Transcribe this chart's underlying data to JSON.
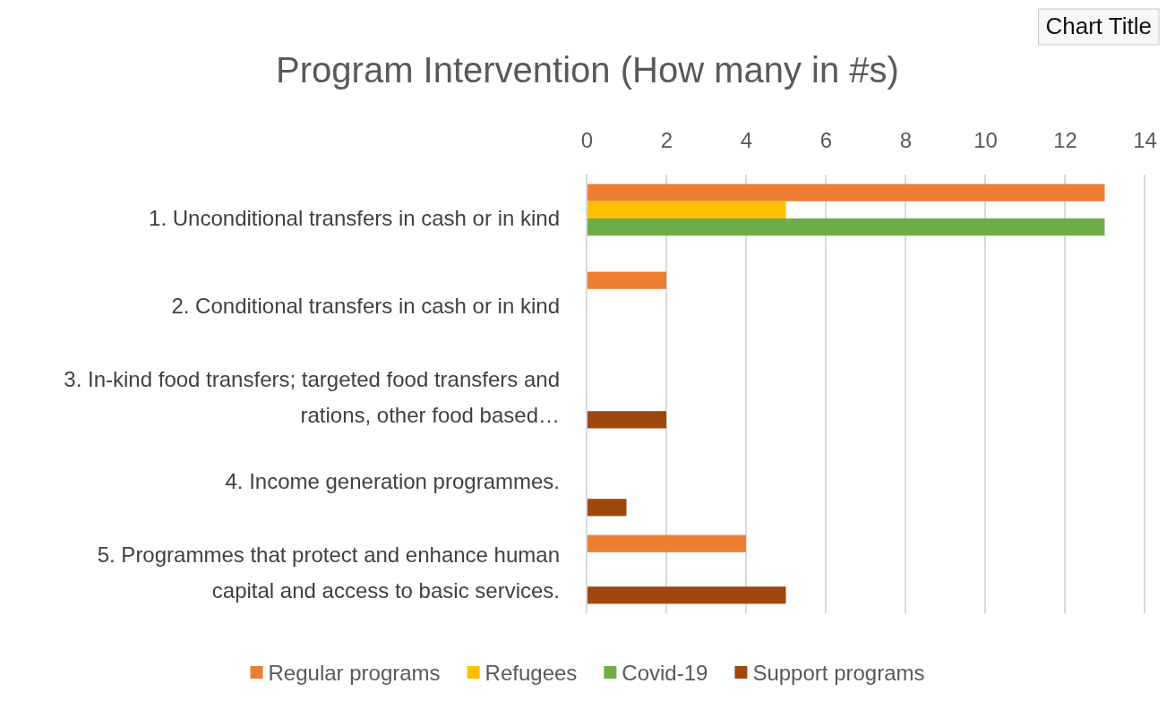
{
  "chart_data": {
    "type": "bar",
    "title": "Program Intervention (How many in #s)",
    "orientation": "horizontal",
    "categories": [
      "1. Unconditional transfers in cash or in kind",
      "2. Conditional transfers in cash or in kind",
      "3. In-kind food transfers; targeted food transfers and rations, other food based…",
      "4. Income generation programmes.",
      "5. Programmes that protect and enhance human capital and access to basic services."
    ],
    "series": [
      {
        "name": "Regular programs",
        "color": "#ed7d31",
        "values": [
          13,
          2,
          null,
          null,
          4
        ]
      },
      {
        "name": "Refugees",
        "color": "#ffc000",
        "values": [
          5,
          null,
          null,
          null,
          null
        ]
      },
      {
        "name": "Covid-19",
        "color": "#70ad47",
        "values": [
          13,
          null,
          null,
          null,
          null
        ]
      },
      {
        "name": "Support programs",
        "color": "#9e480e",
        "values": [
          null,
          null,
          2,
          1,
          5
        ]
      }
    ],
    "xlim": [
      0,
      14
    ],
    "xticks": [
      0,
      2,
      4,
      6,
      8,
      10,
      12,
      14
    ],
    "grid": "x",
    "legend": "bottom",
    "annotations": [
      "Chart Title"
    ]
  }
}
